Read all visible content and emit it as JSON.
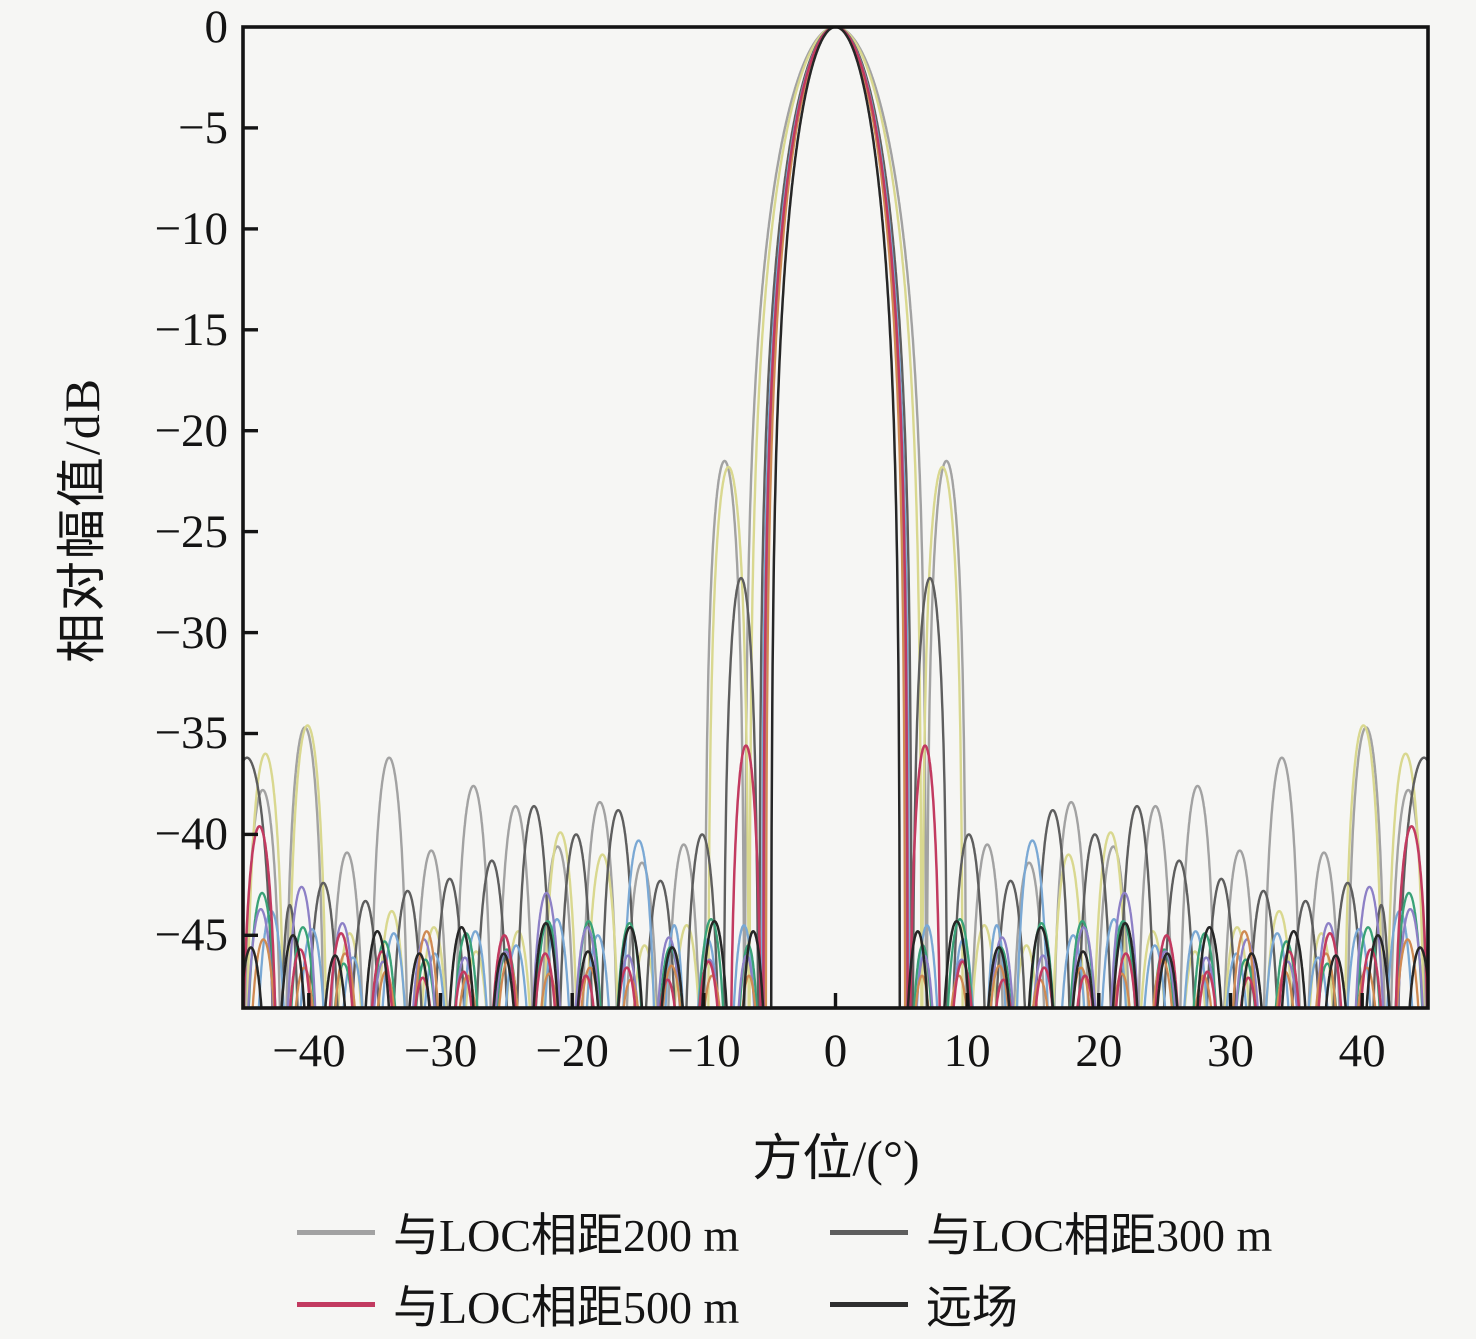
{
  "figure": {
    "background": "#f6f6f4",
    "frame_color": "#141414"
  },
  "chart_data": {
    "type": "line",
    "title": "",
    "xlabel": "方位/(°)",
    "ylabel": "相对幅值/dB",
    "xlim": [
      -45,
      45
    ],
    "ylim": [
      -48.6,
      0
    ],
    "grid": false,
    "legend_position": "below",
    "x_ticks": [
      {
        "value": -40,
        "label": "−40"
      },
      {
        "value": -30,
        "label": "−30"
      },
      {
        "value": -20,
        "label": "−20"
      },
      {
        "value": -10,
        "label": "−10"
      },
      {
        "value": 0,
        "label": "0"
      },
      {
        "value": 10,
        "label": "10"
      },
      {
        "value": 20,
        "label": "20"
      },
      {
        "value": 30,
        "label": "30"
      },
      {
        "value": 40,
        "label": "40"
      }
    ],
    "y_ticks": [
      {
        "value": 0,
        "label": "0"
      },
      {
        "value": -5,
        "label": "−5"
      },
      {
        "value": -10,
        "label": "−10"
      },
      {
        "value": -15,
        "label": "−15"
      },
      {
        "value": -20,
        "label": "−20"
      },
      {
        "value": -25,
        "label": "−25"
      },
      {
        "value": -30,
        "label": "−30"
      },
      {
        "value": -35,
        "label": "−35"
      },
      {
        "value": -40,
        "label": "−40"
      },
      {
        "value": -45,
        "label": "−45"
      }
    ],
    "legend": [
      {
        "label": "与LOC相距200 m",
        "color": "#a2a2a2"
      },
      {
        "label": "与LOC相距300 m",
        "color": "#5e5e5e"
      },
      {
        "label": "与LOC相距500 m",
        "color": "#c23a60"
      },
      {
        "label": "远场",
        "color": "#2f2f2f"
      }
    ],
    "series": [
      {
        "name": "与LOC相距200 m",
        "in_legend": true,
        "color": "#a2a2a2",
        "stroke_width": 2.4,
        "peak_db": 0,
        "main_null_deg": 6.9,
        "first_sidelobe": {
          "angle_deg": 8.4,
          "level_db": -21.5
        },
        "lobes": [
          [
            6.9,
            9.95,
            -21.5
          ],
          [
            9.95,
            13.1,
            -40.5
          ],
          [
            13.1,
            16.3,
            -41.4
          ],
          [
            16.3,
            19.5,
            -38.4
          ],
          [
            19.5,
            22.7,
            -40.6
          ],
          [
            22.7,
            25.9,
            -38.6
          ],
          [
            25.9,
            29.1,
            -37.6
          ],
          [
            29.1,
            32.3,
            -40.8
          ],
          [
            32.3,
            35.5,
            -36.2
          ],
          [
            35.5,
            38.7,
            -40.9
          ],
          [
            38.7,
            41.9,
            -34.7
          ],
          [
            41.9,
            45.1,
            -37.8
          ]
        ]
      },
      {
        "name": "",
        "in_legend": false,
        "color": "#d9d88f",
        "stroke_width": 2.4,
        "peak_db": 0,
        "main_null_deg": 6.55,
        "first_sidelobe": {
          "angle_deg": 8.1,
          "level_db": -21.8
        },
        "lobes": [
          [
            6.55,
            9.7,
            -21.8
          ],
          [
            9.7,
            12.9,
            -44.5
          ],
          [
            12.9,
            16.1,
            -45.5
          ],
          [
            16.1,
            19.3,
            -41.0
          ],
          [
            19.3,
            22.5,
            -39.9
          ],
          [
            22.5,
            25.7,
            -44.8
          ],
          [
            25.7,
            28.9,
            -45.8
          ],
          [
            28.9,
            32.1,
            -44.6
          ],
          [
            32.1,
            35.3,
            -43.8
          ],
          [
            35.3,
            38.5,
            -44.9
          ],
          [
            38.5,
            41.7,
            -34.6
          ],
          [
            41.7,
            44.9,
            -36.0
          ]
        ]
      },
      {
        "name": "与LOC相距300 m",
        "in_legend": true,
        "color": "#5e5e5e",
        "stroke_width": 2.4,
        "peak_db": 0,
        "main_null_deg": 5.8,
        "first_sidelobe": {
          "angle_deg": 7.2,
          "level_db": -27.3
        },
        "lobes": [
          [
            5.8,
            8.55,
            -27.3
          ],
          [
            8.55,
            11.7,
            -40.0
          ],
          [
            11.7,
            14.9,
            -42.3
          ],
          [
            14.9,
            18.1,
            -38.8
          ],
          [
            18.1,
            21.3,
            -40.0
          ],
          [
            21.3,
            24.5,
            -38.6
          ],
          [
            24.5,
            27.7,
            -41.3
          ],
          [
            27.7,
            30.9,
            -42.2
          ],
          [
            30.9,
            34.1,
            -42.8
          ],
          [
            34.1,
            37.3,
            -43.3
          ],
          [
            37.3,
            40.5,
            -42.4
          ],
          [
            40.5,
            42.4,
            -43.5
          ],
          [
            42.4,
            47.0,
            -36.2
          ]
        ]
      },
      {
        "name": "",
        "in_legend": false,
        "color": "#7aa8d4",
        "stroke_width": 2.3,
        "peak_db": 0,
        "main_null_deg": 5.6,
        "first_sidelobe": {
          "angle_deg": 7.0,
          "level_db": -44.5
        },
        "lobes": [
          [
            5.6,
            8.3,
            -44.5
          ],
          [
            8.3,
            11.1,
            -45.2
          ],
          [
            11.1,
            13.4,
            -44.5
          ],
          [
            13.4,
            16.5,
            -40.3
          ],
          [
            16.5,
            19.6,
            -45.0
          ],
          [
            19.6,
            22.7,
            -44.2
          ],
          [
            22.7,
            25.8,
            -45.5
          ],
          [
            25.8,
            28.9,
            -44.8
          ],
          [
            28.9,
            32.0,
            -45.9
          ],
          [
            32.0,
            35.1,
            -44.9
          ],
          [
            35.1,
            38.2,
            -46.1
          ],
          [
            38.2,
            41.3,
            -44.7
          ],
          [
            41.3,
            44.4,
            -43.8
          ]
        ]
      },
      {
        "name": "",
        "in_legend": false,
        "color": "#39a277",
        "stroke_width": 2.3,
        "peak_db": 0,
        "main_null_deg": 5.35,
        "first_sidelobe": {
          "angle_deg": 6.6,
          "level_db": -45.5
        },
        "lobes": [
          [
            5.35,
            7.9,
            -45.5
          ],
          [
            7.9,
            11.0,
            -44.2
          ],
          [
            11.0,
            14.1,
            -45.6
          ],
          [
            14.1,
            17.2,
            -44.4
          ],
          [
            17.2,
            20.3,
            -44.3
          ],
          [
            20.3,
            23.4,
            -44.3
          ],
          [
            23.4,
            26.5,
            -45.7
          ],
          [
            26.5,
            29.6,
            -44.9
          ],
          [
            29.6,
            32.7,
            -46.2
          ],
          [
            32.7,
            35.8,
            -45.3
          ],
          [
            35.8,
            38.9,
            -46.4
          ],
          [
            38.9,
            42.0,
            -44.6
          ],
          [
            42.0,
            45.1,
            -42.9
          ]
        ]
      },
      {
        "name": "",
        "in_legend": false,
        "color": "#8d80c6",
        "stroke_width": 2.3,
        "peak_db": 0,
        "main_null_deg": 5.45,
        "first_sidelobe": {
          "angle_deg": 6.75,
          "level_db": -46.0
        },
        "lobes": [
          [
            5.45,
            8.05,
            -46.0
          ],
          [
            8.05,
            11.1,
            -46.2
          ],
          [
            11.1,
            14.2,
            -45.1
          ],
          [
            14.2,
            17.3,
            -46.0
          ],
          [
            17.3,
            20.4,
            -44.6
          ],
          [
            20.4,
            23.5,
            -42.9
          ],
          [
            23.5,
            26.6,
            -45.8
          ],
          [
            26.6,
            29.7,
            -46.1
          ],
          [
            29.7,
            32.8,
            -45.2
          ],
          [
            32.8,
            35.9,
            -46.3
          ],
          [
            35.9,
            39.0,
            -44.4
          ],
          [
            39.0,
            42.1,
            -42.6
          ],
          [
            42.1,
            45.2,
            -43.7
          ]
        ]
      },
      {
        "name": "",
        "in_legend": false,
        "color": "#cf8a52",
        "stroke_width": 2.3,
        "peak_db": 0,
        "main_null_deg": 5.3,
        "first_sidelobe": {
          "angle_deg": 6.6,
          "level_db": -47.0
        },
        "lobes": [
          [
            5.3,
            7.85,
            -47.0
          ],
          [
            7.85,
            10.9,
            -47.0
          ],
          [
            10.9,
            14.0,
            -46.5
          ],
          [
            14.0,
            17.1,
            -47.2
          ],
          [
            17.1,
            20.2,
            -46.6
          ],
          [
            20.2,
            23.3,
            -46.9
          ],
          [
            23.3,
            26.4,
            -46.2
          ],
          [
            26.4,
            29.5,
            -47.0
          ],
          [
            29.5,
            32.6,
            -44.8
          ],
          [
            32.6,
            35.7,
            -46.8
          ],
          [
            35.7,
            38.8,
            -45.9
          ],
          [
            38.8,
            41.9,
            -46.6
          ],
          [
            41.9,
            45.0,
            -45.2
          ]
        ]
      },
      {
        "name": "与LOC相距500 m",
        "in_legend": true,
        "color": "#c23a60",
        "stroke_width": 2.5,
        "peak_db": 0,
        "main_null_deg": 5.5,
        "first_sidelobe": {
          "angle_deg": 6.8,
          "level_db": -35.6
        },
        "lobes": [
          [
            5.5,
            8.1,
            -35.6
          ],
          [
            8.1,
            11.2,
            -46.3
          ],
          [
            11.2,
            14.3,
            -47.2
          ],
          [
            14.3,
            17.4,
            -46.6
          ],
          [
            17.4,
            20.5,
            -47.0
          ],
          [
            20.5,
            23.6,
            -45.9
          ],
          [
            23.6,
            26.7,
            -45.0
          ],
          [
            26.7,
            29.8,
            -46.8
          ],
          [
            29.8,
            32.9,
            -47.1
          ],
          [
            32.9,
            36.0,
            -45.8
          ],
          [
            36.0,
            39.1,
            -44.9
          ],
          [
            39.1,
            42.2,
            -45.7
          ],
          [
            42.2,
            45.3,
            -39.6
          ]
        ]
      },
      {
        "name": "远场",
        "in_legend": true,
        "color": "#262626",
        "stroke_width": 2.5,
        "peak_db": 0,
        "main_null_deg": 4.9,
        "first_sidelobe": {
          "angle_deg": 6.25,
          "level_db": -44.8
        },
        "lobes": [
          [
            4.9,
            7.6,
            -44.8
          ],
          [
            7.6,
            10.8,
            -44.3
          ],
          [
            10.8,
            14.0,
            -45.6
          ],
          [
            14.0,
            17.2,
            -44.6
          ],
          [
            17.2,
            20.4,
            -45.8
          ],
          [
            20.4,
            23.6,
            -44.4
          ],
          [
            23.6,
            26.8,
            -45.9
          ],
          [
            26.8,
            30.0,
            -44.6
          ],
          [
            30.0,
            33.2,
            -45.9
          ],
          [
            33.2,
            36.4,
            -44.8
          ],
          [
            36.4,
            39.6,
            -46.0
          ],
          [
            39.6,
            42.8,
            -45.0
          ],
          [
            42.8,
            46.0,
            -45.6
          ]
        ]
      }
    ]
  }
}
